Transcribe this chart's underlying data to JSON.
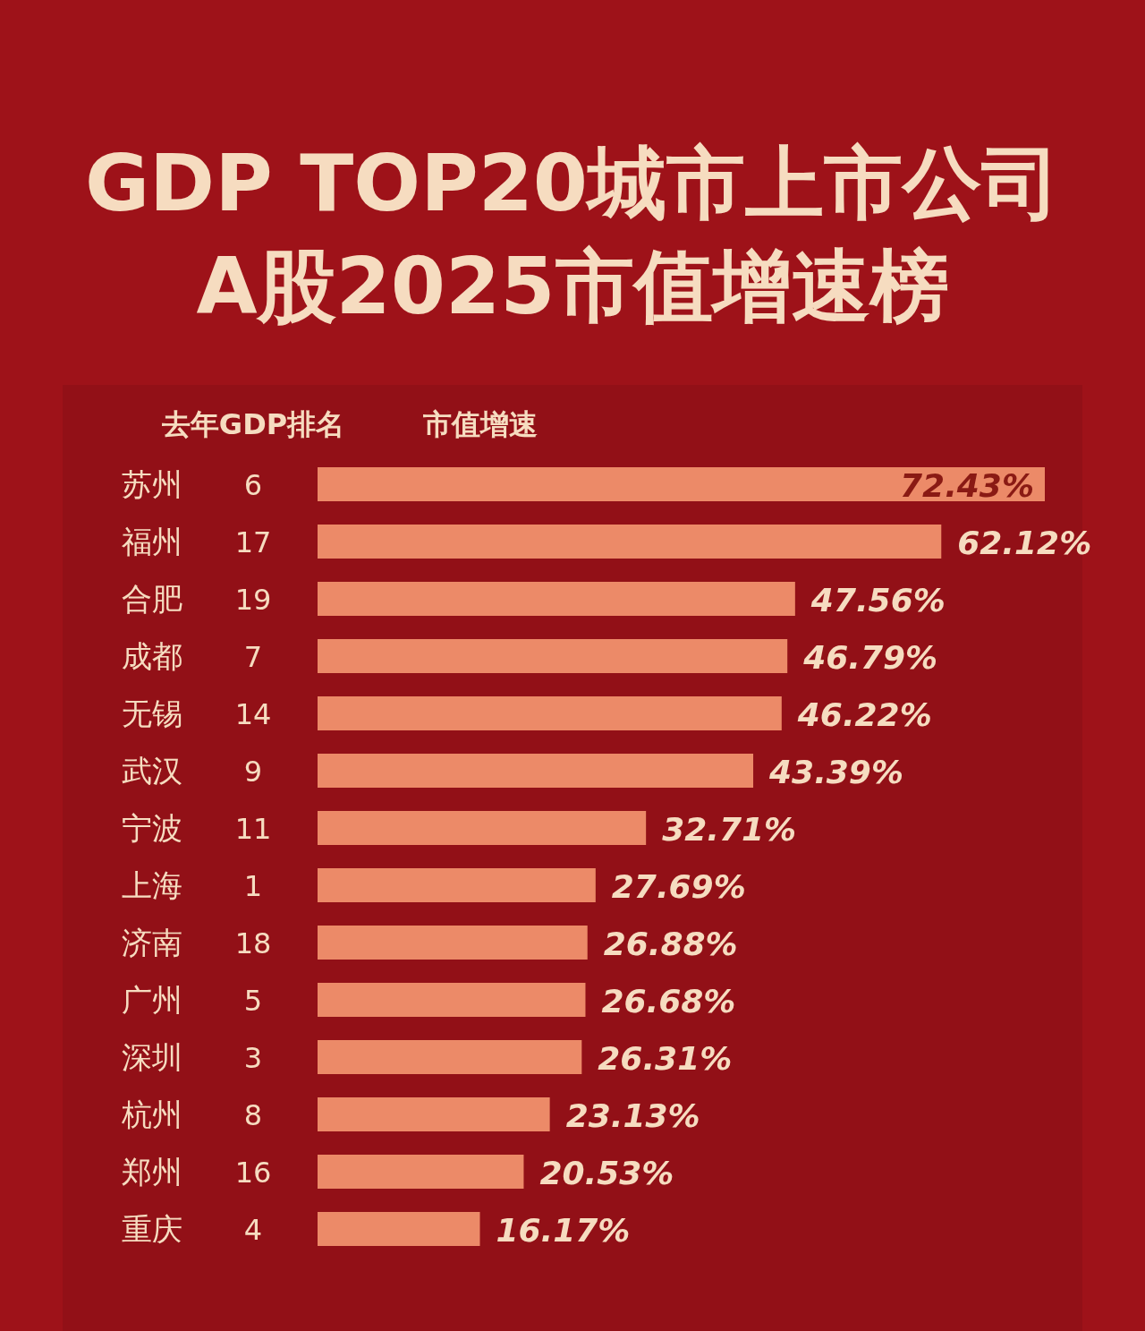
{
  "chart_data": {
    "type": "bar",
    "orientation": "horizontal",
    "title": "GDP TOP20城市上市公司\nA股2025市值增速榜",
    "ylabel": "去年GDP排名",
    "xlabel": "市值增速",
    "categories": [
      "苏州",
      "福州",
      "合肥",
      "成都",
      "无锡",
      "武汉",
      "宁波",
      "上海",
      "济南",
      "广州",
      "深圳",
      "杭州",
      "郑州",
      "重庆"
    ],
    "y2_categories": [
      "6",
      "17",
      "19",
      "7",
      "14",
      "9",
      "11",
      "1",
      "18",
      "5",
      "3",
      "8",
      "16",
      "4"
    ],
    "series": [
      {
        "color": "#ec8a68",
        "values": [
          72.43,
          62.12,
          47.56,
          46.79,
          46.22,
          43.39,
          32.71,
          27.69,
          26.88,
          26.68,
          26.31,
          23.13,
          20.53,
          16.17
        ],
        "value_labels": [
          "72.43%",
          "62.12%",
          "47.56%",
          "46.79%",
          "46.22%",
          "43.39%",
          "32.71%",
          "27.69%",
          "26.88%",
          "26.68%",
          "26.31%",
          "23.13%",
          "20.53%",
          "16.17%"
        ]
      }
    ],
    "xlim": [
      0,
      72.43
    ],
    "tick_labels": "y"
  }
}
